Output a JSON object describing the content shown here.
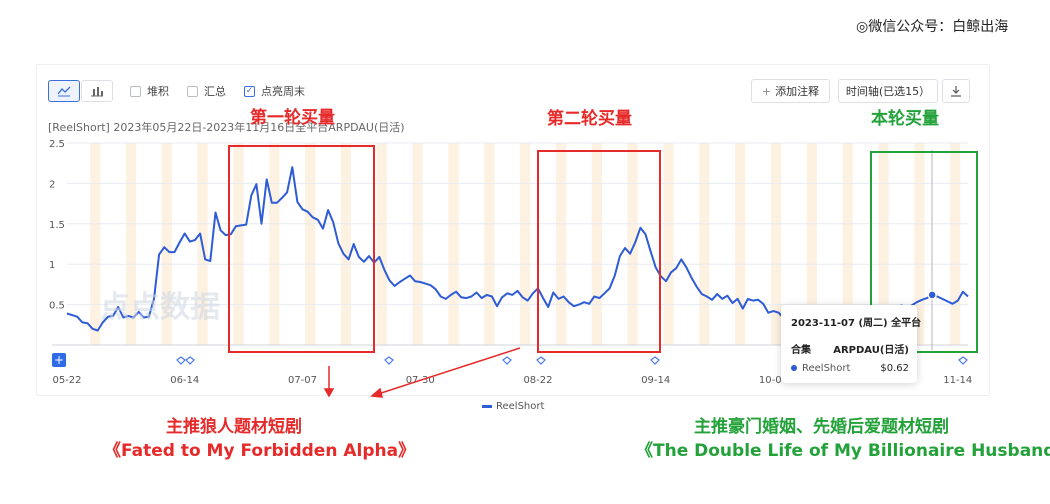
{
  "watermark": "◎微信公众号：白鲸出海",
  "toolbar": {
    "line_icon": "line-chart-icon",
    "bar_icon": "bar-chart-icon",
    "stack_label": "堆积",
    "total_label": "汇总",
    "weekend_label": "点亮周末",
    "weekend_checked": true,
    "add_note_label": "添加注释",
    "timeline_label": "时间轴(已选15）",
    "download_icon": "download-icon"
  },
  "subtitle": "[ReelShort] 2023年05月22日-2023年11月16日全平台ARPDAU(日活)",
  "logo_text": "点点数据",
  "annotations": {
    "phase1": "第一轮买量",
    "phase2": "第二轮买量",
    "phase3": "本轮买量",
    "left_note_line1": "主推狼人题材短剧",
    "left_note_line2": "《Fated to My Forbidden Alpha》",
    "right_note_line1": "主推豪门婚姻、先婚后爱题材短剧",
    "right_note_line2": "《The Double Life of My Billionaire Husband》",
    "red_color": "#e62a2a",
    "green_color": "#23a23a"
  },
  "tooltip": {
    "date": "2023-11-07 (周二) 全平台",
    "col1": "合集",
    "col2": "ARPDAU(日活)",
    "series_name": "ReelShort",
    "value": "$0.62"
  },
  "chart_data": {
    "type": "line",
    "title": "",
    "xlabel": "",
    "ylabel": "",
    "x_start": "2023-05-22",
    "x_end": "2023-11-16",
    "x_ticks": [
      "05-22",
      "06-14",
      "07-07",
      "07-30",
      "08-22",
      "09-14",
      "10-07",
      "11-14"
    ],
    "y_ticks": [
      "0.5",
      "1",
      "1.5",
      "2",
      "2.5"
    ],
    "ylim": [
      0,
      2.5
    ],
    "weekend_highlight": true,
    "legend_position": "bottom-center",
    "series": [
      {
        "name": "ReelShort",
        "color": "#2e5bd6",
        "values": [
          0.39,
          0.37,
          0.35,
          0.28,
          0.27,
          0.2,
          0.18,
          0.28,
          0.35,
          0.36,
          0.47,
          0.34,
          0.36,
          0.34,
          0.41,
          0.34,
          0.35,
          0.57,
          1.12,
          1.21,
          1.15,
          1.15,
          1.27,
          1.38,
          1.28,
          1.3,
          1.38,
          1.06,
          1.04,
          1.64,
          1.42,
          1.36,
          1.37,
          1.47,
          1.48,
          1.49,
          1.85,
          1.99,
          1.5,
          2.05,
          1.76,
          1.76,
          1.82,
          1.89,
          2.2,
          1.77,
          1.68,
          1.65,
          1.58,
          1.55,
          1.44,
          1.67,
          1.52,
          1.26,
          1.13,
          1.06,
          1.25,
          1.09,
          1.03,
          1.1,
          1.02,
          1.09,
          0.93,
          0.8,
          0.73,
          0.78,
          0.82,
          0.86,
          0.79,
          0.78,
          0.76,
          0.74,
          0.69,
          0.6,
          0.57,
          0.62,
          0.66,
          0.59,
          0.58,
          0.6,
          0.65,
          0.58,
          0.62,
          0.6,
          0.48,
          0.59,
          0.64,
          0.62,
          0.67,
          0.59,
          0.55,
          0.64,
          0.7,
          0.58,
          0.47,
          0.65,
          0.57,
          0.6,
          0.53,
          0.48,
          0.5,
          0.53,
          0.51,
          0.6,
          0.58,
          0.64,
          0.7,
          0.86,
          1.1,
          1.2,
          1.13,
          1.27,
          1.45,
          1.37,
          1.16,
          0.96,
          0.85,
          0.79,
          0.9,
          0.95,
          1.06,
          0.96,
          0.83,
          0.72,
          0.63,
          0.6,
          0.56,
          0.63,
          0.57,
          0.61,
          0.52,
          0.57,
          0.45,
          0.57,
          0.55,
          0.56,
          0.51,
          0.4,
          0.42,
          0.4,
          0.33,
          0.41,
          0.35,
          0.35,
          0.32,
          0.45,
          0.36,
          0.31,
          0.26,
          0.38,
          0.35,
          0.4,
          0.46,
          0.39,
          0.4,
          0.43,
          0.37,
          0.33,
          0.3,
          0.38,
          0.34,
          0.36,
          0.43,
          0.49,
          0.45,
          0.49,
          0.53,
          0.56,
          0.58,
          0.62,
          0.6,
          0.57,
          0.54,
          0.51,
          0.55,
          0.66,
          0.6
        ]
      }
    ]
  }
}
